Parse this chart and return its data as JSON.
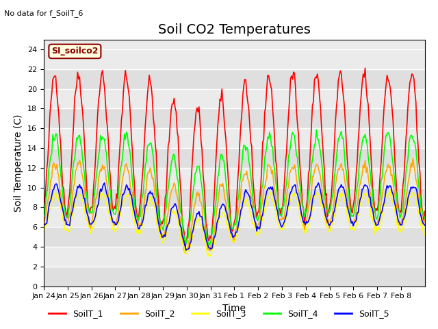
{
  "title": "Soil CO2 Temperatures",
  "ylabel": "Soil Temperature (C)",
  "xlabel": "Time",
  "annotation": "No data for f_SoilT_6",
  "legend_label": "SI_soilco2",
  "series_labels": [
    "SoilT_1",
    "SoilT_2",
    "SoilT_3",
    "SoilT_4",
    "SoilT_5"
  ],
  "series_colors": [
    "red",
    "orange",
    "yellow",
    "lime",
    "blue"
  ],
  "ylim": [
    0,
    25
  ],
  "x_tick_labels": [
    "Jan 24",
    "Jan 25",
    "Jan 26",
    "Jan 27",
    "Jan 28",
    "Jan 29",
    "Jan 30",
    "Jan 31",
    "Feb 1",
    "Feb 2",
    "Feb 3",
    "Feb 4",
    "Feb 5",
    "Feb 6",
    "Feb 7",
    "Feb 8"
  ],
  "plot_bg": "#ebebeb",
  "title_fontsize": 14,
  "label_fontsize": 10,
  "tick_fontsize": 8
}
